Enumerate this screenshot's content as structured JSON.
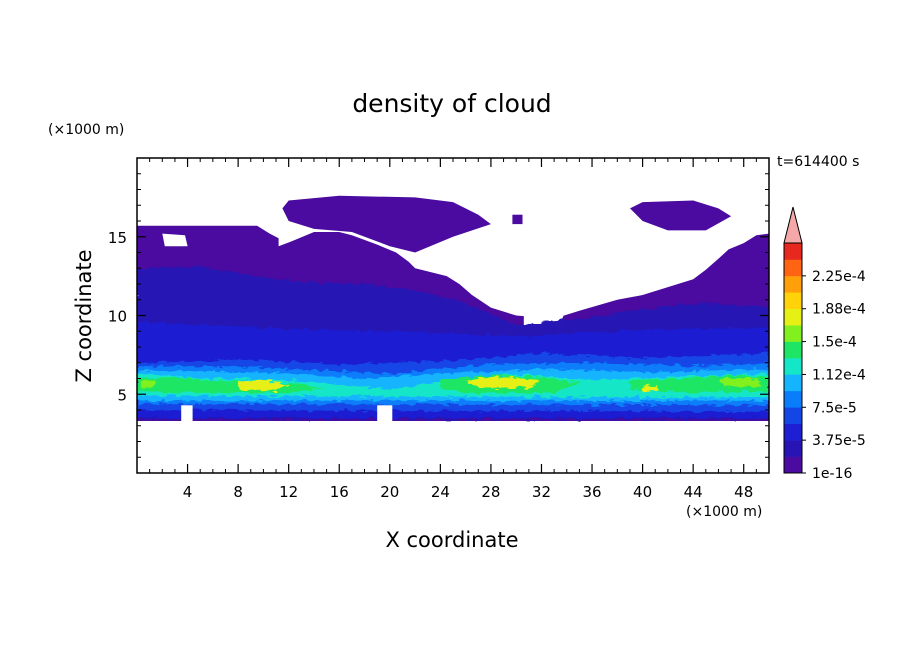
{
  "chart_data": {
    "type": "heatmap",
    "title": "density of cloud",
    "xlabel": "X coordinate",
    "ylabel": "Z coordinate",
    "x_unit": "(×1000 m)",
    "y_unit": "(×1000 m)",
    "time_label": "t=614400 s",
    "xlim": [
      0,
      50
    ],
    "ylim": [
      0,
      20
    ],
    "x_ticks": [
      4,
      8,
      12,
      16,
      20,
      24,
      28,
      32,
      36,
      40,
      44,
      48
    ],
    "y_ticks": [
      5,
      10,
      15
    ],
    "colorbar": {
      "levels": [
        1e-16,
        1.875e-05,
        3.75e-05,
        5.625e-05,
        7.5e-05,
        9.375e-05,
        0.0001125,
        0.00013125,
        0.00015,
        0.00016875,
        0.0001875,
        0.00020625,
        0.000225,
        0.00024375
      ],
      "tick_labels": [
        "1e-16",
        "3.75e-5",
        "7.5e-5",
        "1.12e-4",
        "1.5e-4",
        "1.88e-4",
        "2.25e-4"
      ],
      "colors": [
        "#4b0aa0",
        "#2814b4",
        "#1e1ed2",
        "#1446e6",
        "#0a7dfa",
        "#14b4ff",
        "#14e6c8",
        "#1ee664",
        "#82f01e",
        "#e6f014",
        "#ffd20a",
        "#ffa00a",
        "#ff6414",
        "#e6281e"
      ],
      "extend_color": "#f4a8a8"
    },
    "regions": [
      {
        "level": 0,
        "z_range": [
          3.3,
          15.7
        ],
        "description": "cloud layer from about 3.3 to 15.7 km, with a gap (no cloud) above ~13 km between x≈22 and x≈44"
      },
      {
        "level": 1,
        "z_range": [
          3.5,
          13.0
        ],
        "description": "denser layer below ~13 km"
      },
      {
        "level": 3,
        "z_range": [
          4.0,
          7.0
        ],
        "description": "blue band at low levels"
      },
      {
        "level": 6,
        "z_range": [
          4.8,
          6.4
        ],
        "description": "teal/green core band"
      },
      {
        "level": 9,
        "z_range": [
          5.0,
          6.0
        ],
        "description": "peak yellow patches near x≈9-11, 26-32, 44-49"
      }
    ]
  }
}
